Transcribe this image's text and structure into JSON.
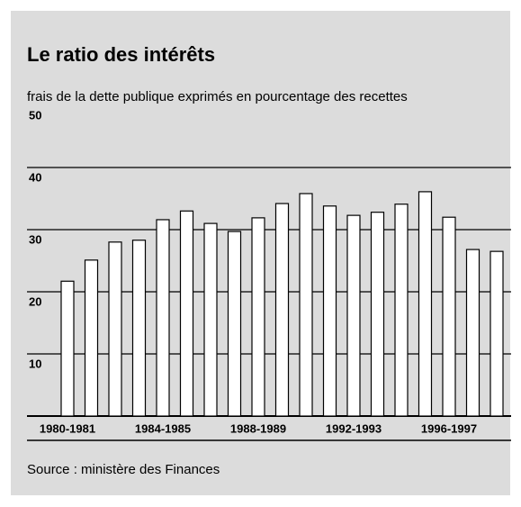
{
  "chart_data": {
    "type": "bar",
    "title": "Le ratio des intérêts",
    "subtitle": "frais de la dette publique exprimés en pourcentage des recettes",
    "source": "Source : ministère des Finances",
    "categories": [
      "1980-1981",
      null,
      null,
      null,
      "1984-1985",
      null,
      null,
      null,
      "1988-1989",
      null,
      null,
      null,
      "1992-1993",
      null,
      null,
      null,
      "1996-1997",
      null,
      null
    ],
    "values": [
      21.7,
      25.1,
      28.0,
      28.3,
      31.6,
      33.0,
      31.0,
      29.7,
      31.9,
      34.2,
      35.8,
      33.8,
      32.3,
      32.8,
      34.1,
      36.1,
      32.0,
      26.8,
      26.5
    ],
    "color": "#ffffff",
    "ylim": [
      0,
      50
    ],
    "yticks": [
      10,
      20,
      30,
      40,
      50
    ],
    "grid": true
  }
}
